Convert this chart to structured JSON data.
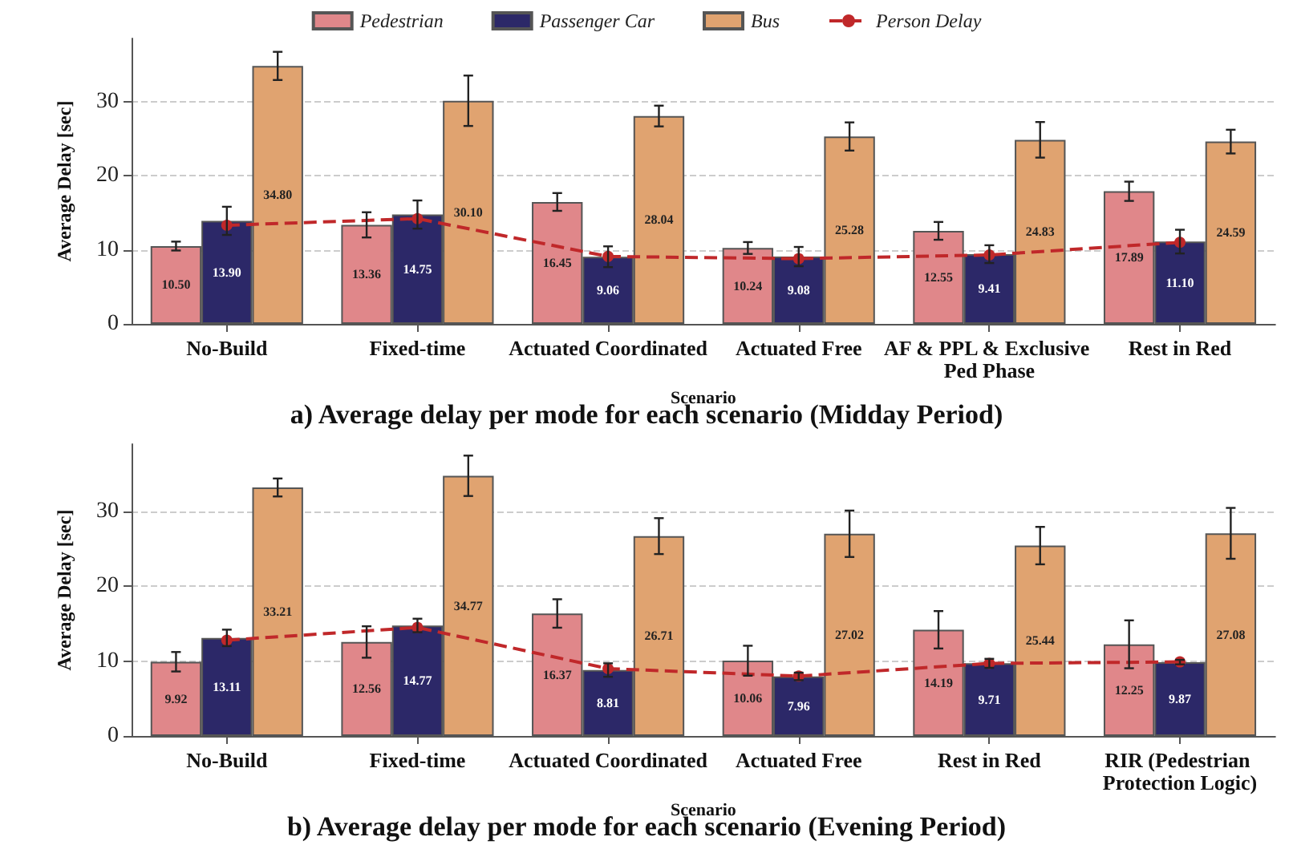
{
  "chart_data": [
    {
      "type": "bar",
      "title": "a) Average delay per mode for each scenario (Midday Period)",
      "xlabel": "Scenario",
      "ylabel": "Average Delay [sec]",
      "categories": [
        "No-Build",
        "Fixed-time",
        "Actuated Coordinated",
        "Actuated Free",
        "AF & PPL & Exclusive Ped Phase",
        "Rest in Red"
      ],
      "series": [
        {
          "name": "Pedestrian",
          "color": "#e0878a",
          "values": [
            10.5,
            13.36,
            16.45,
            10.24,
            12.55,
            17.89
          ],
          "value_labels": [
            "10.50",
            "13.36",
            "16.45",
            "10.24",
            "12.55",
            "17.89"
          ],
          "errors": [
            0.6,
            1.7,
            1.2,
            0.8,
            1.2,
            1.3
          ]
        },
        {
          "name": "Passenger Car",
          "color": "#2c2868",
          "values": [
            13.9,
            14.75,
            9.06,
            9.08,
            9.41,
            11.1
          ],
          "value_labels": [
            "13.90",
            "14.75",
            "9.06",
            "9.08",
            "9.41",
            "11.10"
          ],
          "errors": [
            1.9,
            1.9,
            1.4,
            1.3,
            1.2,
            1.6
          ]
        },
        {
          "name": "Bus",
          "color": "#e0a370",
          "values": [
            34.8,
            30.1,
            28.04,
            25.28,
            24.83,
            24.59
          ],
          "value_labels": [
            "34.80",
            "30.10",
            "28.04",
            "25.28",
            "24.83",
            "24.59"
          ],
          "errors": [
            1.9,
            3.4,
            1.4,
            1.9,
            2.4,
            1.6
          ]
        },
        {
          "name": "Person Delay",
          "type": "line",
          "color": "#c0282a",
          "line_style": "dashed",
          "marker": "circle",
          "values": [
            13.3,
            14.2,
            9.1,
            8.8,
            9.3,
            11.0
          ]
        }
      ],
      "ylim": [
        0,
        38.5
      ],
      "yticks": [
        0,
        10,
        20,
        30
      ],
      "grid": "y",
      "legend": "top"
    },
    {
      "type": "bar",
      "title": "b) Average delay per mode for each scenario (Evening Period)",
      "xlabel": "Scenario",
      "ylabel": "Average Delay [sec]",
      "categories": [
        "No-Build",
        "Fixed-time",
        "Actuated Coordinated",
        "Actuated Free",
        "Rest in Red",
        "RIR (Pedestrian Protection Logic)"
      ],
      "series": [
        {
          "color": "#e0878a",
          "values": [
            9.92,
            12.56,
            16.37,
            10.06,
            14.19,
            12.25
          ],
          "value_labels": [
            "9.92",
            "12.56",
            "16.37",
            "10.06",
            "14.19",
            "12.25"
          ],
          "errors": [
            1.3,
            2.1,
            1.9,
            2.0,
            2.5,
            3.2
          ]
        },
        {
          "color": "#2c2868",
          "values": [
            13.11,
            14.77,
            8.81,
            7.96,
            9.71,
            9.87
          ],
          "value_labels": [
            "13.11",
            "14.77",
            "8.81",
            "7.96",
            "9.71",
            "9.87"
          ],
          "errors": [
            1.1,
            0.9,
            0.9,
            0.5,
            0.6,
            0.3
          ]
        },
        {
          "color": "#e0a370",
          "values": [
            33.21,
            34.77,
            26.71,
            27.02,
            25.44,
            27.08
          ],
          "value_labels": [
            "33.21",
            "34.77",
            "26.71",
            "27.02",
            "25.44",
            "27.08"
          ],
          "errors": [
            1.2,
            2.7,
            2.4,
            3.1,
            2.5,
            3.4
          ]
        },
        {
          "type": "line",
          "color": "#c0282a",
          "line_style": "dashed",
          "marker": "circle",
          "values": [
            12.8,
            14.5,
            9.0,
            8.0,
            9.7,
            9.9
          ]
        }
      ],
      "ylim": [
        0,
        39
      ],
      "yticks": [
        0,
        10,
        20,
        30
      ],
      "grid": "y",
      "legend": false
    }
  ]
}
